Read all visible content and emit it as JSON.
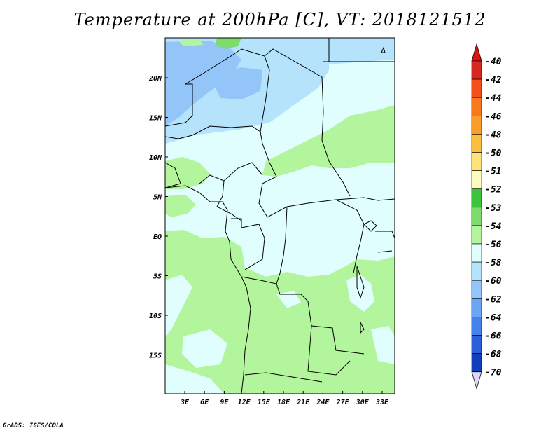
{
  "title": "Temperature at 200hPa [C], VT: 2018121512",
  "credit": "GrADS: IGES/COLA",
  "map": {
    "lat_ticks": [
      "20N",
      "15N",
      "10N",
      "5N",
      "EQ",
      "5S",
      "10S",
      "15S"
    ],
    "lon_ticks": [
      "3E",
      "6E",
      "9E",
      "12E",
      "15E",
      "18E",
      "21E",
      "24E",
      "27E",
      "30E",
      "33E"
    ]
  },
  "colorbar": {
    "labels": [
      "-40",
      "-42",
      "-44",
      "-46",
      "-48",
      "-50",
      "-51",
      "-52",
      "-53",
      "-54",
      "-56",
      "-58",
      "-60",
      "-62",
      "-64",
      "-66",
      "-68",
      "-70"
    ],
    "colors": [
      "#d7281f",
      "#f4501c",
      "#f8781e",
      "#f99e2c",
      "#fbbf3e",
      "#fde37a",
      "#fdfcbf",
      "#3dc33d",
      "#7ddc6c",
      "#b3f59d",
      "#e0fefd",
      "#b4e3fb",
      "#94c5f9",
      "#6ca5f3",
      "#4482ee",
      "#2960da",
      "#1240bc",
      "#09127f"
    ],
    "top_color": "#e1110f",
    "bottom_color": "#ddd7f7"
  }
}
